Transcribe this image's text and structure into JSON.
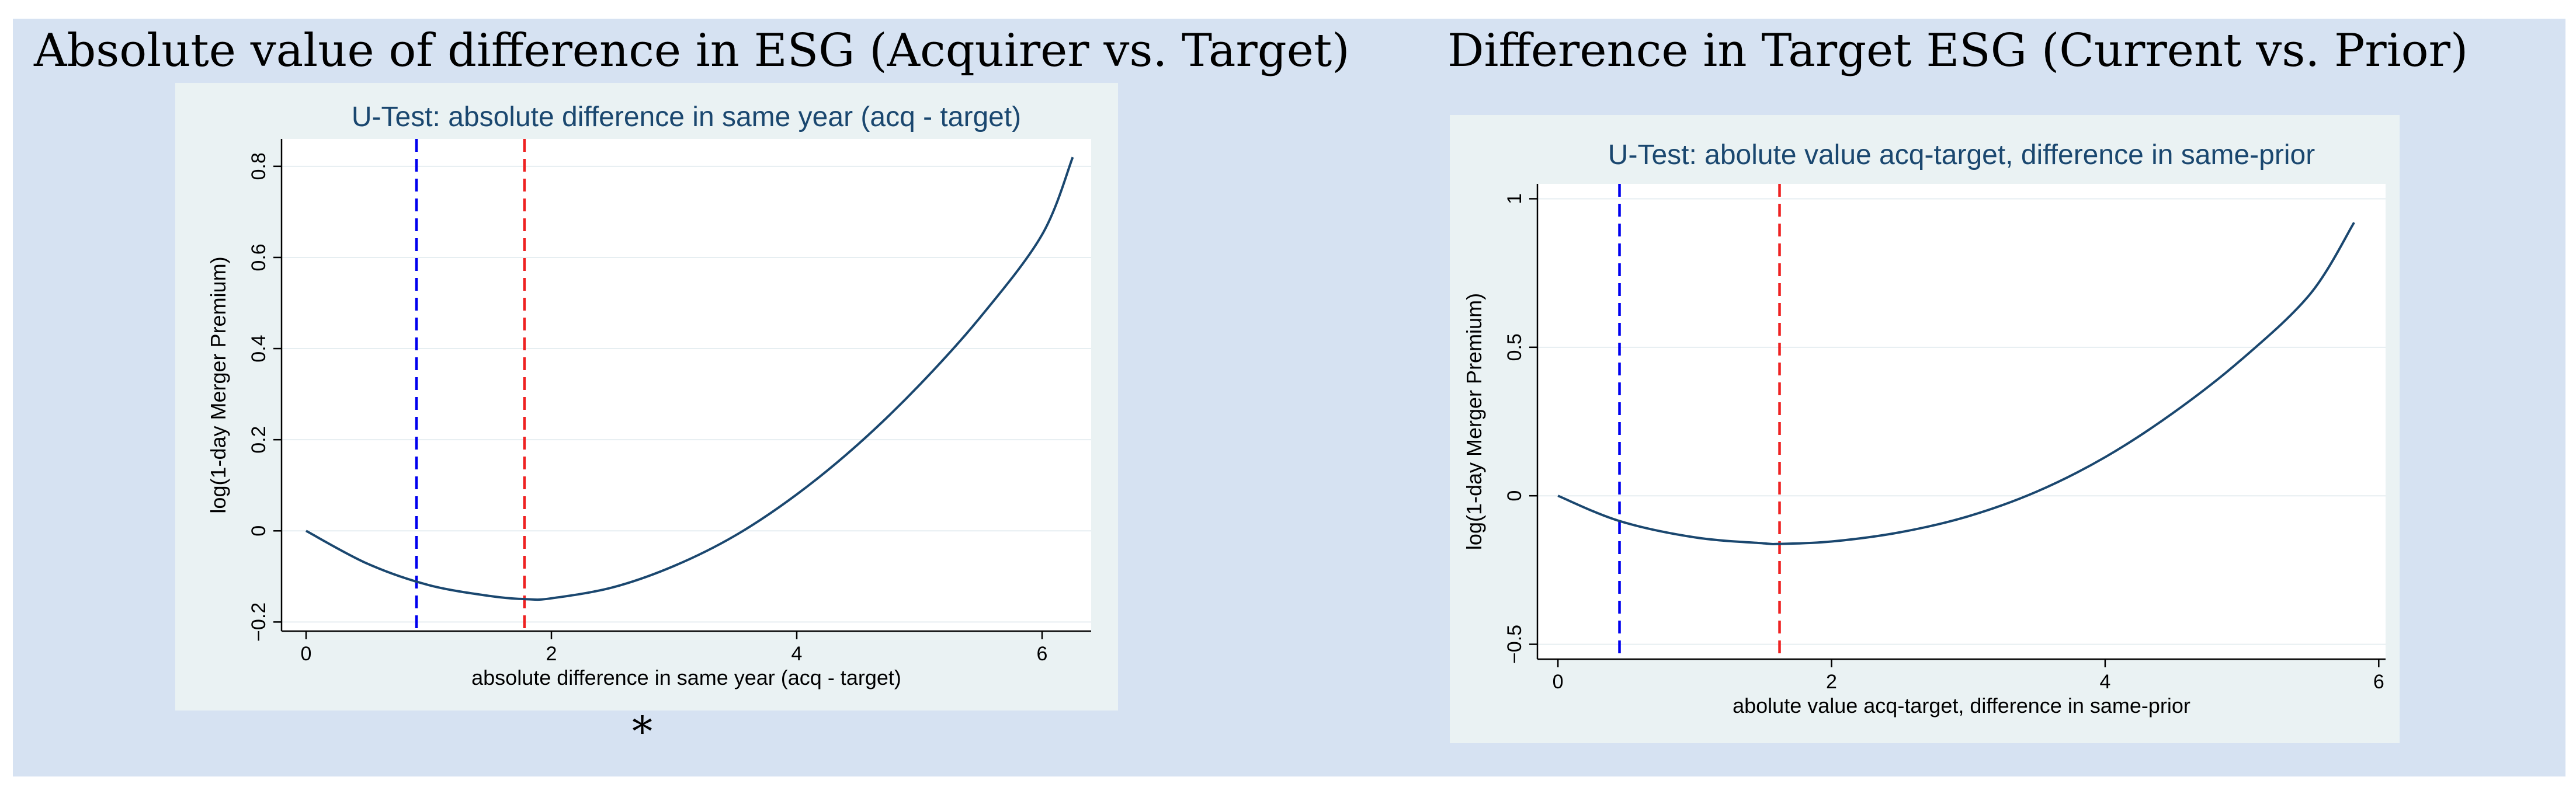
{
  "slide": {
    "left_heading": "Absolute value of difference in ESG (Acquirer vs. Target)",
    "right_heading": "Difference in Target ESG (Current vs. Prior)",
    "footnote_marker": "*"
  },
  "chart_data": [
    {
      "type": "line",
      "title": "U-Test: absolute difference in same year (acq - target)",
      "xlabel": "absolute difference in same year (acq - target)",
      "ylabel": "log(1-day Merger Premium)",
      "xlim": [
        -0.2,
        6.4
      ],
      "ylim": [
        -0.22,
        0.86
      ],
      "xticks": [
        0,
        2,
        4,
        6
      ],
      "xtick_labels": [
        "0",
        "2",
        "4",
        "6"
      ],
      "yticks": [
        -0.2,
        0,
        0.2,
        0.4,
        0.6,
        0.8
      ],
      "ytick_labels": [
        "−0.2",
        "0",
        "0.2",
        "0.4",
        "0.6",
        "0.8"
      ],
      "grid": true,
      "series": [
        {
          "color": "#1a476f",
          "x": [
            0,
            0.5,
            1.0,
            1.5,
            1.8,
            2.0,
            2.5,
            3.0,
            3.5,
            4.0,
            4.5,
            5.0,
            5.5,
            6.0,
            6.25
          ],
          "y": [
            0,
            -0.072,
            -0.119,
            -0.143,
            -0.15,
            -0.148,
            -0.124,
            -0.077,
            -0.01,
            0.08,
            0.19,
            0.32,
            0.47,
            0.65,
            0.82
          ]
        }
      ],
      "vlines": [
        {
          "x": 0.9,
          "color": "#0000ee",
          "style": "dashed"
        },
        {
          "x": 1.78,
          "color": "#ee2222",
          "style": "dashed"
        }
      ]
    },
    {
      "type": "line",
      "title": "U-Test: abolute value acq-target, difference in same-prior",
      "xlabel": "abolute value acq-target, difference in same-prior",
      "ylabel": "log(1-day Merger Premium)",
      "xlim": [
        -0.15,
        6.05
      ],
      "ylim": [
        -0.55,
        1.05
      ],
      "xticks": [
        0,
        2,
        4,
        6
      ],
      "xtick_labels": [
        "0",
        "2",
        "4",
        "6"
      ],
      "yticks": [
        -0.5,
        0,
        0.5,
        1
      ],
      "ytick_labels": [
        "−0.5",
        "0",
        "0.5",
        "1"
      ],
      "grid": true,
      "series": [
        {
          "color": "#1a476f",
          "x": [
            0,
            0.45,
            1.0,
            1.5,
            1.62,
            2.0,
            2.5,
            3.0,
            3.5,
            4.0,
            4.5,
            5.0,
            5.5,
            5.82
          ],
          "y": [
            0,
            -0.085,
            -0.14,
            -0.16,
            -0.162,
            -0.154,
            -0.123,
            -0.069,
            0.014,
            0.13,
            0.28,
            0.46,
            0.68,
            0.92
          ]
        }
      ],
      "vlines": [
        {
          "x": 0.45,
          "color": "#0000ee",
          "style": "dashed"
        },
        {
          "x": 1.62,
          "color": "#ee2222",
          "style": "dashed"
        }
      ]
    }
  ]
}
